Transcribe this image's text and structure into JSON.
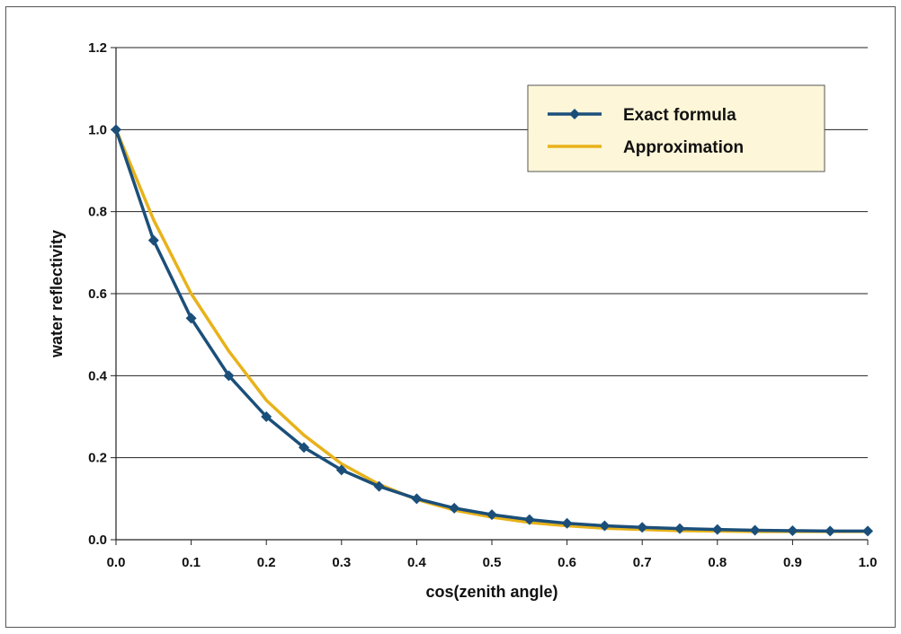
{
  "chart_data": {
    "type": "line",
    "title": "",
    "xlabel": "cos(zenith angle)",
    "ylabel": "water reflectivity",
    "xlim": [
      0.0,
      1.0
    ],
    "ylim": [
      0.0,
      1.2
    ],
    "x_ticks": [
      "0.0",
      "0.1",
      "0.2",
      "0.3",
      "0.4",
      "0.5",
      "0.6",
      "0.7",
      "0.8",
      "0.9",
      "1.0"
    ],
    "y_ticks": [
      "0.0",
      "0.2",
      "0.4",
      "0.6",
      "0.8",
      "1.0",
      "1.2"
    ],
    "grid": "horizontal",
    "legend_position": "top-right",
    "x": [
      0.0,
      0.05,
      0.1,
      0.15,
      0.2,
      0.25,
      0.3,
      0.35,
      0.4,
      0.45,
      0.5,
      0.55,
      0.6,
      0.65,
      0.7,
      0.75,
      0.8,
      0.85,
      0.9,
      0.95,
      1.0
    ],
    "series": [
      {
        "name": "Exact formula",
        "color": "#1b4f7a",
        "marker": "diamond",
        "values": [
          1.0,
          0.73,
          0.54,
          0.4,
          0.3,
          0.225,
          0.17,
          0.13,
          0.1,
          0.077,
          0.061,
          0.049,
          0.04,
          0.034,
          0.03,
          0.027,
          0.025,
          0.023,
          0.022,
          0.021,
          0.021
        ]
      },
      {
        "name": "Approximation",
        "color": "#e8b21a",
        "marker": "none",
        "values": [
          1.0,
          0.78,
          0.6,
          0.46,
          0.34,
          0.255,
          0.185,
          0.135,
          0.098,
          0.072,
          0.055,
          0.042,
          0.034,
          0.028,
          0.025,
          0.022,
          0.021,
          0.02,
          0.02,
          0.02,
          0.02
        ]
      }
    ]
  }
}
